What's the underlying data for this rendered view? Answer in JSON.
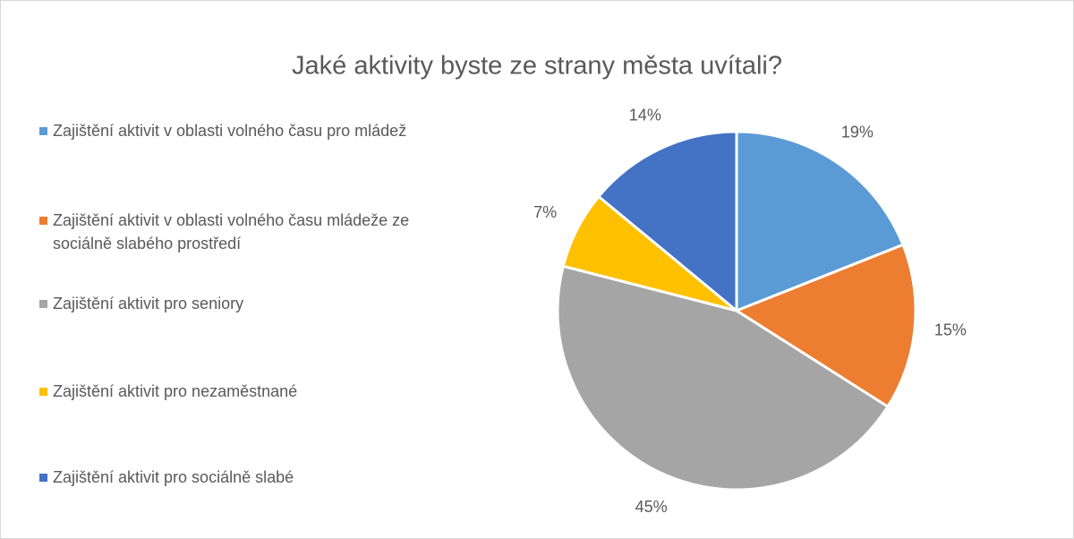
{
  "chart_data": {
    "type": "pie",
    "title": "Jaké aktivity byste ze strany města uvítali?",
    "categories": [
      "Zajištění aktivit v oblasti volného času pro mládež",
      "Zajištění aktivit v oblasti volného času mládeže ze sociálně slabého prostředí",
      "Zajištění aktivit pro seniory",
      "Zajištění aktivit pro nezaměstnané",
      "Zajištění aktivit pro sociálně slabé"
    ],
    "values": [
      19,
      15,
      45,
      7,
      14
    ],
    "value_labels": [
      "19%",
      "15%",
      "45%",
      "7%",
      "14%"
    ],
    "colors": [
      "#5b9bd5",
      "#ed7d31",
      "#a5a5a5",
      "#ffc000",
      "#4472c4"
    ],
    "legend": "left"
  }
}
